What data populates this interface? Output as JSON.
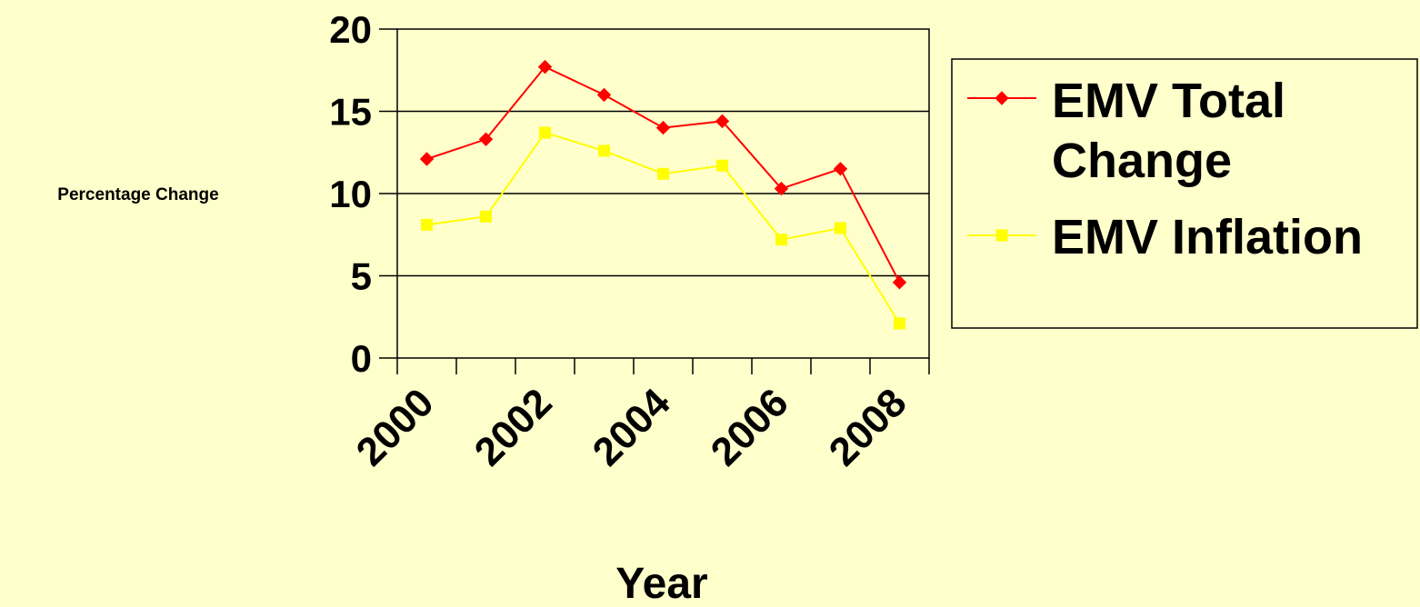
{
  "chart_data": {
    "type": "line",
    "xlabel": "Year",
    "ylabel": "Percentage Change",
    "ylim": [
      0,
      20
    ],
    "y_ticks": [
      "0",
      "5",
      "10",
      "15",
      "20"
    ],
    "x_tick_labels": [
      "2000",
      "2002",
      "2004",
      "2006",
      "2008"
    ],
    "x": [
      2000,
      2001,
      2002,
      2003,
      2004,
      2005,
      2006,
      2007,
      2008
    ],
    "grid": true,
    "legend_position": "right",
    "series": [
      {
        "name": "EMV Total Change",
        "name_lines": [
          "EMV Total",
          "Change"
        ],
        "color": "#FF0000",
        "marker": "diamond",
        "values": [
          12.1,
          13.3,
          17.7,
          16.0,
          14.0,
          14.4,
          10.3,
          11.5,
          4.6
        ]
      },
      {
        "name": "EMV Inflation",
        "name_lines": [
          "EMV Inflation"
        ],
        "color": "#FFFF00",
        "marker": "square",
        "values": [
          8.1,
          8.6,
          13.7,
          12.6,
          11.2,
          11.7,
          7.2,
          7.9,
          2.1
        ]
      }
    ]
  }
}
